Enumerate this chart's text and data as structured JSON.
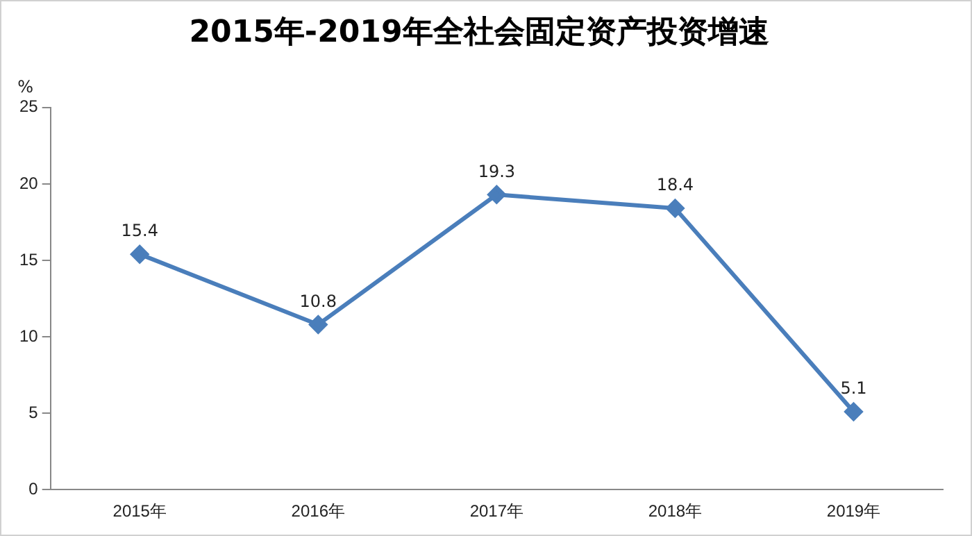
{
  "chart_data": {
    "type": "line",
    "title": "2015年-2019年全社会固定资产投资增速",
    "ylabel": "%",
    "categories": [
      "2015年",
      "2016年",
      "2017年",
      "2018年",
      "2019年"
    ],
    "series": [
      {
        "color": "#4a7ebb",
        "values": [
          15.4,
          10.8,
          19.3,
          18.4,
          5.1
        ]
      }
    ],
    "ylim": [
      0,
      25
    ],
    "yticks": [
      0,
      5,
      10,
      15,
      20,
      25
    ],
    "grid": false,
    "legend": false,
    "marker": "diamond",
    "line_style": "solid",
    "data_labels": true
  }
}
